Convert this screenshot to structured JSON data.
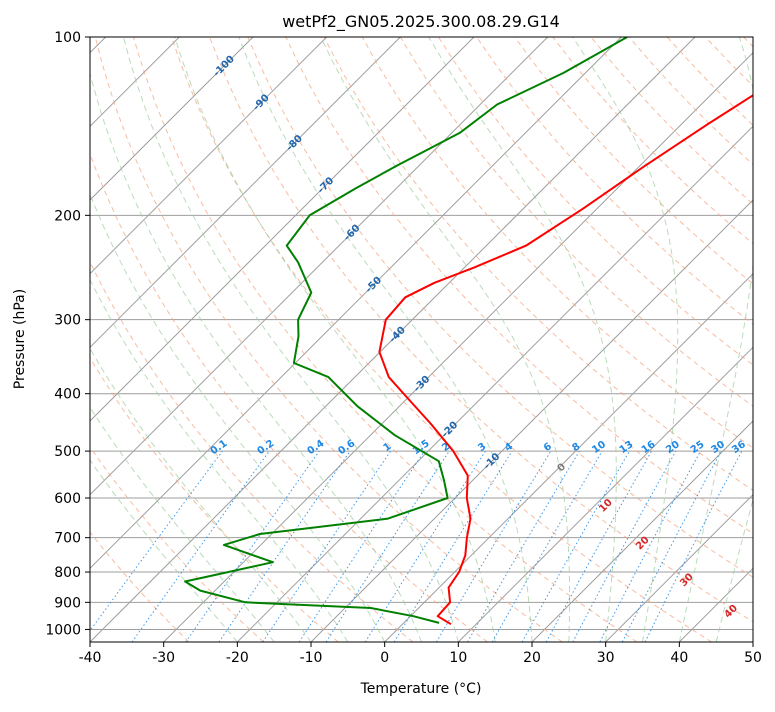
{
  "chart_data": {
    "type": "line",
    "title": "wetPf2_GN05.2025.300.08.29.G14",
    "xlabel": "Temperature (°C)",
    "ylabel": "Pressure (hPa)",
    "xlim": [
      -40,
      50
    ],
    "ylim": [
      1050,
      100
    ],
    "y_scale": "log",
    "grid": true,
    "x_ticks": [
      -40,
      -30,
      -20,
      -10,
      0,
      10,
      20,
      30,
      40,
      50
    ],
    "y_ticks": [
      100,
      200,
      300,
      400,
      500,
      600,
      700,
      800,
      900,
      1000
    ],
    "colors": {
      "temperature": "#ff0000",
      "dewpoint": "#008000",
      "isotherm": "#9e9e9e",
      "dry_adiabat": "#f4a582",
      "moist_adiabat": "#9ccc9c",
      "mixing_ratio": "#1e88e5",
      "isotherm_label": "#2166ac",
      "mixing_ratio_label": "#1e88e5",
      "moist_label_red": "#d62728",
      "moist_label_gray": "#7f7f7f"
    },
    "series": [
      {
        "key": "temperature",
        "points": [
          {
            "t": -20.2,
            "p": 100
          },
          {
            "t": -22.5,
            "p": 115
          },
          {
            "t": -26.4,
            "p": 140
          },
          {
            "t": -29.3,
            "p": 165
          },
          {
            "t": -31.9,
            "p": 195
          },
          {
            "t": -34.6,
            "p": 225
          },
          {
            "t": -38.7,
            "p": 245
          },
          {
            "t": -42.0,
            "p": 260
          },
          {
            "t": -44.0,
            "p": 275
          },
          {
            "t": -43.6,
            "p": 300
          },
          {
            "t": -40.1,
            "p": 340
          },
          {
            "t": -35.4,
            "p": 375
          },
          {
            "t": -29.5,
            "p": 410
          },
          {
            "t": -23.3,
            "p": 450
          },
          {
            "t": -16.6,
            "p": 500
          },
          {
            "t": -11.3,
            "p": 550
          },
          {
            "t": -8.4,
            "p": 600
          },
          {
            "t": -5.1,
            "p": 650
          },
          {
            "t": -3.0,
            "p": 700
          },
          {
            "t": -0.8,
            "p": 750
          },
          {
            "t": 0.6,
            "p": 800
          },
          {
            "t": 1.3,
            "p": 850
          },
          {
            "t": 3.5,
            "p": 900
          },
          {
            "t": 3.7,
            "p": 950
          },
          {
            "t": 6.6,
            "p": 980
          }
        ]
      },
      {
        "key": "dewpoint",
        "points": [
          {
            "t": -49.2,
            "p": 100
          },
          {
            "t": -53.0,
            "p": 115
          },
          {
            "t": -57.7,
            "p": 130
          },
          {
            "t": -58.9,
            "p": 145
          },
          {
            "t": -63.0,
            "p": 165
          },
          {
            "t": -65.5,
            "p": 180
          },
          {
            "t": -68.1,
            "p": 200
          },
          {
            "t": -67.1,
            "p": 225
          },
          {
            "t": -63.3,
            "p": 240
          },
          {
            "t": -57.4,
            "p": 270
          },
          {
            "t": -55.5,
            "p": 300
          },
          {
            "t": -53.2,
            "p": 320
          },
          {
            "t": -50.2,
            "p": 355
          },
          {
            "t": -43.6,
            "p": 375
          },
          {
            "t": -35.7,
            "p": 420
          },
          {
            "t": -26.7,
            "p": 470
          },
          {
            "t": -17.2,
            "p": 520
          },
          {
            "t": -13.9,
            "p": 560
          },
          {
            "t": -11.0,
            "p": 600
          },
          {
            "t": -16.3,
            "p": 650
          },
          {
            "t": -31.6,
            "p": 690
          },
          {
            "t": -35.0,
            "p": 720
          },
          {
            "t": -26.0,
            "p": 770
          },
          {
            "t": -30.7,
            "p": 800
          },
          {
            "t": -35.3,
            "p": 830
          },
          {
            "t": -32.0,
            "p": 860
          },
          {
            "t": -24.3,
            "p": 900
          },
          {
            "t": -6.5,
            "p": 920
          },
          {
            "t": 0.4,
            "p": 950
          },
          {
            "t": 4.8,
            "p": 975
          }
        ]
      }
    ],
    "isotherm_labels": [
      "-100",
      "-90",
      "-80",
      "-70",
      "-60",
      "-50",
      "-40",
      "-30",
      "-20",
      "-10"
    ],
    "mixing_ratio_labels": [
      "0.1",
      "0.2",
      "0.4",
      "0.6",
      "1",
      "1.5",
      "2",
      "3",
      "4",
      "6",
      "8",
      "10",
      "13",
      "16",
      "20",
      "25",
      "30",
      "36"
    ],
    "moist_adiabat_labels": [
      "0",
      "10",
      "20",
      "30",
      "40"
    ]
  }
}
